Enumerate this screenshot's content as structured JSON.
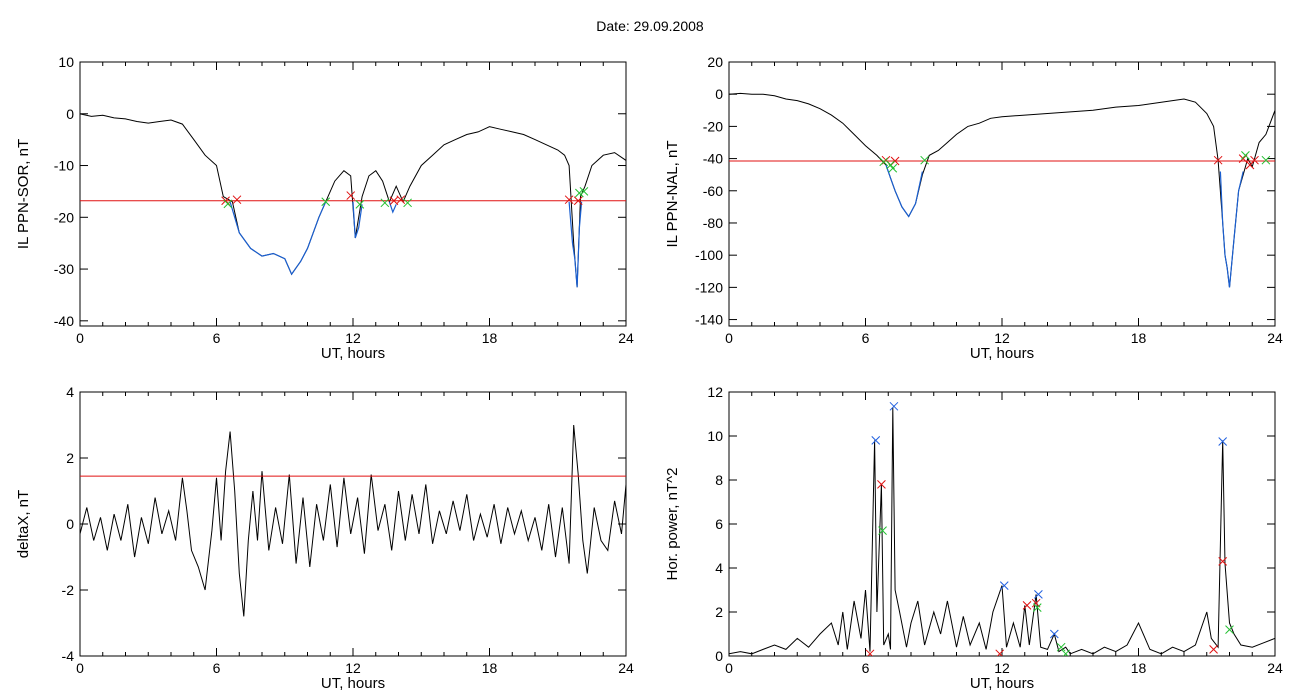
{
  "header": {
    "title": "Date:  29.09.2008"
  },
  "chart_data": [
    {
      "type": "line",
      "xlabel": "UT, hours",
      "ylabel": "IL PPN-SOR, nT",
      "xlim": [
        0,
        24
      ],
      "ylim": [
        -41,
        10
      ],
      "xticks": [
        0,
        6,
        12,
        18,
        24
      ],
      "yticks": [
        10,
        0,
        -10,
        -20,
        -30,
        -40
      ],
      "threshold": -16.8,
      "series": [
        {
          "color": "#000000",
          "x": [
            0,
            0.5,
            1,
            1.5,
            2,
            2.5,
            3,
            3.5,
            4,
            4.5,
            5,
            5.5,
            6,
            6.3,
            6.7,
            7,
            7.5,
            8,
            8.5,
            9,
            9.3,
            9.7,
            10,
            10.5,
            10.8,
            11.2,
            11.6,
            11.9,
            12.1,
            12.4,
            12.7,
            13,
            13.3,
            13.6,
            13.9,
            14.2,
            14.5,
            15,
            15.5,
            16,
            16.5,
            17,
            17.5,
            18,
            18.5,
            19,
            19.5,
            20,
            20.5,
            21,
            21.3,
            21.5,
            21.7,
            21.85,
            22,
            22.2,
            22.5,
            23,
            23.5,
            24
          ],
          "y": [
            0,
            -0.5,
            -0.3,
            -0.8,
            -1,
            -1.5,
            -1.8,
            -1.5,
            -1.2,
            -2,
            -5,
            -8,
            -10,
            -16,
            -17,
            -23,
            -26,
            -27.5,
            -27,
            -28,
            -31,
            -28.5,
            -26,
            -20,
            -17,
            -13,
            -11,
            -12,
            -24,
            -16,
            -12,
            -11,
            -13,
            -17,
            -14,
            -17,
            -14,
            -10,
            -8,
            -6,
            -5,
            -4,
            -3.5,
            -2.5,
            -3,
            -3.5,
            -4,
            -5,
            -6,
            -7,
            -8,
            -10,
            -25,
            -33.5,
            -16,
            -14,
            -10,
            -8,
            -7.5,
            -9
          ]
        }
      ],
      "blue_segments": [
        {
          "x": [
            6.6,
            7,
            7.5,
            8,
            8.5,
            9,
            9.3,
            9.7,
            10,
            10.5,
            10.8
          ],
          "y": [
            -17,
            -23,
            -26,
            -27.5,
            -27,
            -28,
            -31,
            -28.5,
            -26,
            -20,
            -17
          ]
        },
        {
          "x": [
            12,
            12.1,
            12.25,
            12.4
          ],
          "y": [
            -17,
            -24,
            -22,
            -17.5
          ]
        },
        {
          "x": [
            13.6,
            13.75,
            13.9
          ],
          "y": [
            -17,
            -19,
            -17.5
          ]
        },
        {
          "x": [
            21.5,
            21.65,
            21.75,
            21.85,
            21.95,
            22.05
          ],
          "y": [
            -17,
            -25,
            -28,
            -33.5,
            -22,
            -17
          ]
        }
      ],
      "markers_red": [
        [
          6.4,
          -16.8
        ],
        [
          6.9,
          -16.6
        ],
        [
          11.9,
          -15.8
        ],
        [
          13.8,
          -16.8
        ],
        [
          14.1,
          -16.6
        ],
        [
          21.5,
          -16.6
        ],
        [
          21.9,
          -16.8
        ]
      ],
      "markers_green": [
        [
          6.5,
          -17.4
        ],
        [
          10.8,
          -17
        ],
        [
          12.3,
          -17.5
        ],
        [
          13.4,
          -17.2
        ],
        [
          14.4,
          -17.2
        ],
        [
          21.95,
          -15.3
        ],
        [
          22.15,
          -15
        ]
      ]
    },
    {
      "type": "line",
      "xlabel": "UT, hours",
      "ylabel": "IL PPN-NAL, nT",
      "xlim": [
        0,
        24
      ],
      "ylim": [
        -144,
        20
      ],
      "xticks": [
        0,
        6,
        12,
        18,
        24
      ],
      "yticks": [
        20,
        0,
        -20,
        -40,
        -60,
        -80,
        -100,
        -120,
        -140
      ],
      "threshold": -41.5,
      "series": [
        {
          "color": "#000000",
          "x": [
            0,
            0.5,
            1,
            1.5,
            2,
            2.5,
            3,
            3.5,
            4,
            4.5,
            5,
            5.5,
            6,
            6.5,
            6.9,
            7.1,
            7.3,
            7.6,
            7.9,
            8.2,
            8.5,
            8.8,
            9.2,
            9.6,
            10,
            10.5,
            11,
            11.5,
            12,
            13,
            14,
            15,
            16,
            17,
            18,
            19,
            19.5,
            20,
            20.5,
            21,
            21.3,
            21.5,
            21.7,
            21.8,
            21.9,
            22,
            22.2,
            22.4,
            22.6,
            22.8,
            23,
            23.3,
            23.6,
            24
          ],
          "y": [
            0,
            0.5,
            0,
            0,
            -1,
            -3,
            -4,
            -6,
            -9,
            -13,
            -18,
            -25,
            -32,
            -38,
            -44,
            -52,
            -60,
            -70,
            -76,
            -68,
            -50,
            -38,
            -35,
            -30,
            -25,
            -20,
            -18,
            -15,
            -14,
            -13,
            -12,
            -11,
            -10,
            -8,
            -7,
            -5,
            -4,
            -3,
            -5,
            -12,
            -20,
            -41,
            -80,
            -100,
            -108,
            -120,
            -90,
            -60,
            -50,
            -40,
            -45,
            -30,
            -25,
            -10
          ]
        }
      ],
      "blue_segments": [
        {
          "x": [
            6.9,
            7.1,
            7.3,
            7.6,
            7.9,
            8.2,
            8.5
          ],
          "y": [
            -44,
            -52,
            -60,
            -70,
            -76,
            -68,
            -48
          ]
        },
        {
          "x": [
            21.6,
            21.7,
            21.8,
            21.9,
            22,
            22.2,
            22.4,
            22.6
          ],
          "y": [
            -48,
            -80,
            -100,
            -108,
            -120,
            -90,
            -60,
            -48
          ]
        }
      ],
      "markers_red": [
        [
          6.9,
          -41
        ],
        [
          7.3,
          -41.5
        ],
        [
          21.5,
          -41
        ],
        [
          22.6,
          -40
        ],
        [
          22.9,
          -44
        ],
        [
          23.1,
          -41
        ]
      ],
      "markers_green": [
        [
          6.8,
          -42
        ],
        [
          7.1,
          -44
        ],
        [
          7.2,
          -46
        ],
        [
          8.6,
          -41
        ],
        [
          22.7,
          -38
        ],
        [
          23.6,
          -41
        ]
      ]
    },
    {
      "type": "line",
      "xlabel": "UT, hours",
      "ylabel": "deltaX, nT",
      "xlim": [
        0,
        24
      ],
      "ylim": [
        -4,
        4
      ],
      "xticks": [
        0,
        6,
        12,
        18,
        24
      ],
      "yticks": [
        4,
        2,
        0,
        -2,
        -4
      ],
      "threshold": 1.45,
      "series": [
        {
          "color": "#000000",
          "x": [
            0,
            0.3,
            0.6,
            0.9,
            1.2,
            1.5,
            1.8,
            2.1,
            2.4,
            2.7,
            3,
            3.3,
            3.6,
            3.9,
            4.2,
            4.5,
            4.7,
            4.9,
            5.2,
            5.5,
            5.8,
            6,
            6.2,
            6.4,
            6.6,
            6.8,
            7,
            7.2,
            7.4,
            7.6,
            7.8,
            8,
            8.3,
            8.6,
            8.9,
            9.2,
            9.5,
            9.8,
            10.1,
            10.4,
            10.7,
            11,
            11.3,
            11.6,
            11.9,
            12.2,
            12.5,
            12.8,
            13.1,
            13.4,
            13.7,
            14,
            14.3,
            14.6,
            14.9,
            15.2,
            15.5,
            15.8,
            16.1,
            16.4,
            16.7,
            17,
            17.3,
            17.6,
            17.9,
            18.2,
            18.5,
            18.8,
            19.1,
            19.4,
            19.7,
            20,
            20.3,
            20.6,
            20.9,
            21.2,
            21.5,
            21.7,
            21.9,
            22.1,
            22.3,
            22.6,
            22.9,
            23.2,
            23.5,
            23.8,
            24
          ],
          "y": [
            -0.3,
            0.5,
            -0.5,
            0.2,
            -0.8,
            0.3,
            -0.5,
            0.6,
            -1,
            0.2,
            -0.6,
            0.8,
            -0.3,
            0.4,
            -0.5,
            1.4,
            0.4,
            -0.8,
            -1.3,
            -2,
            -0.2,
            1.4,
            -0.5,
            1.6,
            2.8,
            1,
            -1.5,
            -2.8,
            -0.5,
            1,
            -0.5,
            1.6,
            -0.8,
            0.5,
            -0.6,
            1.5,
            -1.2,
            0.8,
            -1.3,
            0.6,
            -0.5,
            1.2,
            -0.7,
            1.4,
            -0.3,
            0.8,
            -0.9,
            1.5,
            -0.2,
            0.6,
            -0.8,
            1,
            -0.5,
            0.9,
            -0.3,
            1.2,
            -0.6,
            0.4,
            -0.3,
            0.7,
            -0.2,
            0.9,
            -0.5,
            0.3,
            -0.4,
            0.6,
            -0.6,
            0.5,
            -0.3,
            0.4,
            -0.5,
            0.2,
            -0.8,
            0.6,
            -1,
            0.5,
            -1.2,
            3,
            1.5,
            -0.5,
            -1.5,
            0.5,
            -0.5,
            -0.8,
            0.7,
            -0.3,
            1.2
          ]
        }
      ],
      "blue_segments": [],
      "markers_red": [],
      "markers_green": []
    },
    {
      "type": "line",
      "xlabel": "UT, hours",
      "ylabel": "Hor. power, nT^2",
      "xlim": [
        0,
        24
      ],
      "ylim": [
        0,
        12
      ],
      "xticks": [
        0,
        6,
        12,
        18,
        24
      ],
      "yticks": [
        12,
        10,
        8,
        6,
        4,
        2,
        0
      ],
      "threshold": null,
      "series": [
        {
          "color": "#000000",
          "x": [
            0,
            0.5,
            1,
            1.5,
            2,
            2.5,
            3,
            3.5,
            4,
            4.5,
            4.8,
            5,
            5.2,
            5.5,
            5.8,
            6,
            6.2,
            6.4,
            6.5,
            6.7,
            6.8,
            7,
            7.1,
            7.2,
            7.3,
            7.5,
            7.8,
            8,
            8.3,
            8.6,
            9,
            9.3,
            9.6,
            10,
            10.3,
            10.6,
            11,
            11.3,
            11.6,
            12,
            12.2,
            12.5,
            12.8,
            13,
            13.2,
            13.5,
            13.7,
            14,
            14.3,
            14.5,
            14.8,
            15,
            15.5,
            16,
            16.5,
            17,
            17.5,
            18,
            18.5,
            19,
            19.5,
            20,
            20.5,
            21,
            21.2,
            21.5,
            21.7,
            21.8,
            22,
            22.2,
            22.5,
            23,
            23.5,
            24
          ],
          "y": [
            0.1,
            0.2,
            0.1,
            0.3,
            0.5,
            0.3,
            0.8,
            0.4,
            1,
            1.5,
            0.5,
            2,
            0.3,
            2.5,
            0.8,
            3,
            0.2,
            9.8,
            2,
            7.8,
            0.5,
            1,
            0.3,
            11.3,
            3,
            2,
            0.4,
            1.5,
            2.5,
            0.5,
            2,
            1,
            2.5,
            0.4,
            1.8,
            0.5,
            1.5,
            0.3,
            2,
            3.2,
            0.4,
            1.5,
            0.4,
            2.3,
            0.5,
            2.8,
            0.4,
            0.3,
            1,
            0.2,
            0.4,
            0.1,
            0.3,
            0.1,
            0.4,
            0.2,
            0.5,
            1.5,
            0.3,
            0.1,
            0.4,
            0.2,
            0.5,
            2,
            0.8,
            0.4,
            9.8,
            4.2,
            1.5,
            1,
            0.5,
            0.4,
            0.6,
            0.8
          ]
        }
      ],
      "blue_segments": [],
      "markers_blue": [
        [
          6.45,
          9.8
        ],
        [
          7.25,
          11.35
        ],
        [
          12.1,
          3.2
        ],
        [
          13.6,
          2.8
        ],
        [
          14.3,
          1.0
        ],
        [
          21.7,
          9.75
        ]
      ],
      "markers_red": [
        [
          6.7,
          7.8
        ],
        [
          13.1,
          2.3
        ],
        [
          13.5,
          2.4
        ],
        [
          21.7,
          4.3
        ],
        [
          6.2,
          0.1
        ],
        [
          11.9,
          0.1
        ],
        [
          21.3,
          0.3
        ]
      ],
      "markers_green": [
        [
          6.75,
          5.7
        ],
        [
          13.55,
          2.2
        ],
        [
          14.6,
          0.4
        ],
        [
          22,
          1.2
        ],
        [
          14.8,
          0.1
        ]
      ]
    }
  ]
}
